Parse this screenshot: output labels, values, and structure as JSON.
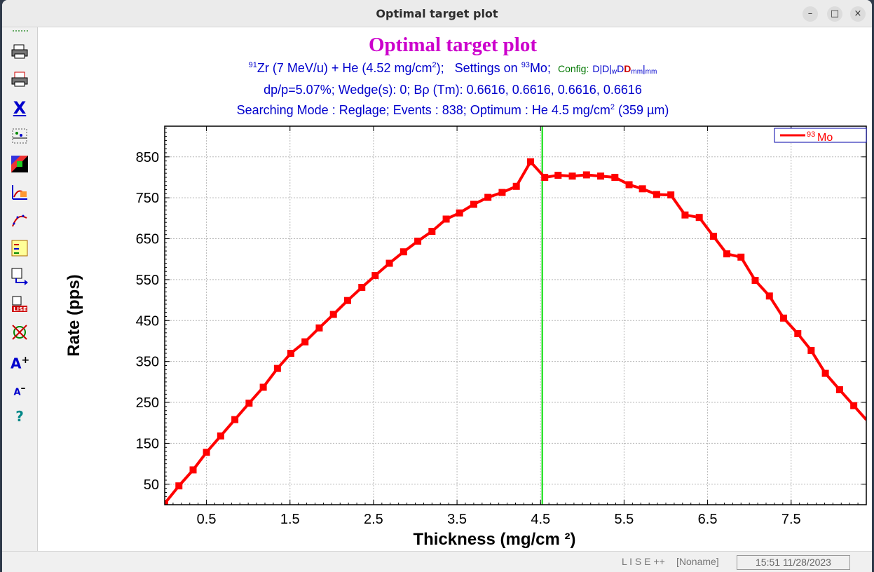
{
  "window": {
    "title": "Optimal target plot"
  },
  "header": {
    "title": "Optimal target plot",
    "line1": {
      "proj_a": "91",
      "proj": "Zr (7 MeV/u) + He (4.52 mg/cm",
      "proj_sup": "2",
      "proj_end": ");",
      "settings_pre": "Settings on",
      "settings_a": "93",
      "settings_el": "Mo;",
      "config_label": "Config:"
    },
    "line2": "dp/p=5.07%;   Wedge(s): 0;   Bρ (Tm): 0.6616, 0.6616, 0.6616, 0.6616",
    "line3": {
      "pre": "Searching Mode : Reglage;   Events : 838;   Optimum : He 4.5 mg/cm",
      "sup": "2",
      "post": " (359 µm)"
    }
  },
  "config_parts": [
    "D",
    "|",
    "D",
    "|",
    "w",
    "D",
    "D",
    "mm",
    "|",
    "mm"
  ],
  "toolbar_icons": [
    "print-icon",
    "print-preview-icon",
    "cut-icon",
    "zoom-xy-icon",
    "color-palette-icon",
    "plot-settings-icon",
    "curve-fit-icon",
    "legend-icon",
    "export-icon",
    "lise-export-icon",
    "clear-marker-icon",
    "font-increase-icon",
    "font-decrease-icon",
    "help-icon"
  ],
  "chart_data": {
    "type": "line",
    "xlabel": "Thickness (mg/cm ²)",
    "ylabel": "Rate (pps)",
    "xlim": [
      0.0,
      8.4
    ],
    "ylim": [
      0,
      925
    ],
    "xticks": [
      "0.5",
      "1.5",
      "2.5",
      "3.5",
      "4.5",
      "5.5",
      "6.5",
      "7.5"
    ],
    "xtick_values": [
      0.5,
      1.5,
      2.5,
      3.5,
      4.5,
      5.5,
      6.5,
      7.5
    ],
    "yticks": [
      "50",
      "150",
      "250",
      "350",
      "450",
      "550",
      "650",
      "750",
      "850"
    ],
    "ytick_values": [
      50,
      150,
      250,
      350,
      450,
      550,
      650,
      750,
      850
    ],
    "grid": true,
    "vline_x": 4.52,
    "legend_position": "top-right",
    "series": [
      {
        "name": "93Mo",
        "name_sup": "93",
        "name_text": "Mo",
        "color": "#ff0000",
        "x": [
          0.0,
          0.17,
          0.34,
          0.5,
          0.67,
          0.84,
          1.01,
          1.18,
          1.35,
          1.51,
          1.68,
          1.85,
          2.02,
          2.19,
          2.36,
          2.52,
          2.69,
          2.86,
          3.03,
          3.2,
          3.37,
          3.53,
          3.7,
          3.87,
          4.04,
          4.21,
          4.38,
          4.55,
          4.71,
          4.88,
          5.05,
          5.22,
          5.39,
          5.56,
          5.72,
          5.89,
          6.06,
          6.23,
          6.4,
          6.57,
          6.73,
          6.9,
          7.07,
          7.24,
          7.41,
          7.58,
          7.74,
          7.91,
          8.08,
          8.25
        ],
        "y": [
          3,
          46,
          85,
          128,
          168,
          208,
          248,
          287,
          333,
          370,
          398,
          432,
          465,
          499,
          531,
          560,
          590,
          618,
          644,
          668,
          698,
          713,
          734,
          751,
          763,
          778,
          838,
          800,
          805,
          803,
          806,
          803,
          800,
          782,
          772,
          758,
          757,
          708,
          702,
          656,
          613,
          605,
          548,
          510,
          456,
          418,
          377,
          321,
          281,
          242
        ]
      }
    ]
  },
  "status": {
    "app": "L I S E ++",
    "file": "[Noname]",
    "time": "15:51  11/28/2023"
  }
}
